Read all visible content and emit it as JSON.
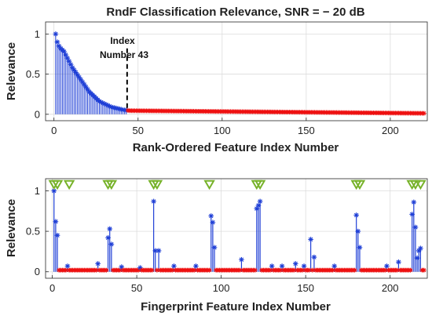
{
  "chart_data": [
    {
      "type": "stem",
      "title": "RndF Classification Relevance, SNR = − 20 dB",
      "xlabel": "Rank-Ordered Feature Index Number",
      "ylabel": "Relevance",
      "xlim": [
        -5,
        222
      ],
      "ylim": [
        -0.08,
        1.15
      ],
      "xticks": [
        0,
        50,
        100,
        150,
        200
      ],
      "yticks": [
        0,
        0.5,
        1
      ],
      "ytick_labels": [
        "0",
        "0.5",
        "1"
      ],
      "grid": true,
      "cutoff_index": 43,
      "annotation": [
        "Index",
        "Number 43"
      ],
      "decay": {
        "n_features": 220,
        "top_values": [
          1.0,
          0.9,
          0.85,
          0.82,
          0.8,
          0.78,
          0.74,
          0.7,
          0.66,
          0.62,
          0.58,
          0.55,
          0.52,
          0.49,
          0.46,
          0.43,
          0.4,
          0.37,
          0.34,
          0.31,
          0.28,
          0.26,
          0.24,
          0.22,
          0.2,
          0.18,
          0.16,
          0.15,
          0.14,
          0.13,
          0.12,
          0.11,
          0.1,
          0.09,
          0.085,
          0.08,
          0.075,
          0.07,
          0.065,
          0.06,
          0.055,
          0.052,
          0.05,
          0.048
        ],
        "tail_start": 0.045,
        "tail_end": 0.012
      },
      "series": [
        {
          "color": "#1f3fd6"
        },
        {
          "color": "#ee1111"
        }
      ]
    },
    {
      "type": "stem",
      "xlabel": "Fingerprint Feature Index Number",
      "ylabel": "Relevance",
      "xlim": [
        -4,
        222
      ],
      "ylim": [
        -0.08,
        1.15
      ],
      "xticks": [
        0,
        50,
        100,
        150,
        200
      ],
      "yticks": [
        0,
        0.5,
        1
      ],
      "ytick_labels": [
        "0",
        "0.5",
        "1"
      ],
      "grid": true,
      "n_features": 220,
      "baseline_value": 0.02,
      "selected_points": [
        {
          "x": 1,
          "y": 1.0
        },
        {
          "x": 2,
          "y": 0.62
        },
        {
          "x": 3,
          "y": 0.45
        },
        {
          "x": 9,
          "y": 0.07
        },
        {
          "x": 27,
          "y": 0.1
        },
        {
          "x": 33,
          "y": 0.42
        },
        {
          "x": 34,
          "y": 0.53
        },
        {
          "x": 35,
          "y": 0.34
        },
        {
          "x": 41,
          "y": 0.06
        },
        {
          "x": 52,
          "y": 0.05
        },
        {
          "x": 60,
          "y": 0.87
        },
        {
          "x": 61,
          "y": 0.26
        },
        {
          "x": 63,
          "y": 0.26
        },
        {
          "x": 72,
          "y": 0.07
        },
        {
          "x": 85,
          "y": 0.07
        },
        {
          "x": 94,
          "y": 0.69
        },
        {
          "x": 95,
          "y": 0.61
        },
        {
          "x": 96,
          "y": 0.3
        },
        {
          "x": 112,
          "y": 0.15
        },
        {
          "x": 121,
          "y": 0.78
        },
        {
          "x": 122,
          "y": 0.82
        },
        {
          "x": 123,
          "y": 0.87
        },
        {
          "x": 130,
          "y": 0.07
        },
        {
          "x": 136,
          "y": 0.07
        },
        {
          "x": 144,
          "y": 0.1
        },
        {
          "x": 149,
          "y": 0.07
        },
        {
          "x": 153,
          "y": 0.4
        },
        {
          "x": 155,
          "y": 0.18
        },
        {
          "x": 167,
          "y": 0.07
        },
        {
          "x": 180,
          "y": 0.7
        },
        {
          "x": 181,
          "y": 0.5
        },
        {
          "x": 182,
          "y": 0.3
        },
        {
          "x": 198,
          "y": 0.07
        },
        {
          "x": 205,
          "y": 0.12
        },
        {
          "x": 213,
          "y": 0.71
        },
        {
          "x": 214,
          "y": 0.86
        },
        {
          "x": 215,
          "y": 0.55
        },
        {
          "x": 216,
          "y": 0.17
        },
        {
          "x": 217,
          "y": 0.26
        },
        {
          "x": 218,
          "y": 0.29
        }
      ],
      "triangle_markers_x": [
        1,
        3,
        10,
        33,
        35,
        60,
        62,
        93,
        121,
        123,
        180,
        182,
        213,
        215,
        218
      ],
      "triangle_y": 1.08,
      "series": [
        {
          "color": "#1f3fd6"
        },
        {
          "color": "#ee1111"
        },
        {
          "color": "#77b22a"
        }
      ]
    }
  ]
}
